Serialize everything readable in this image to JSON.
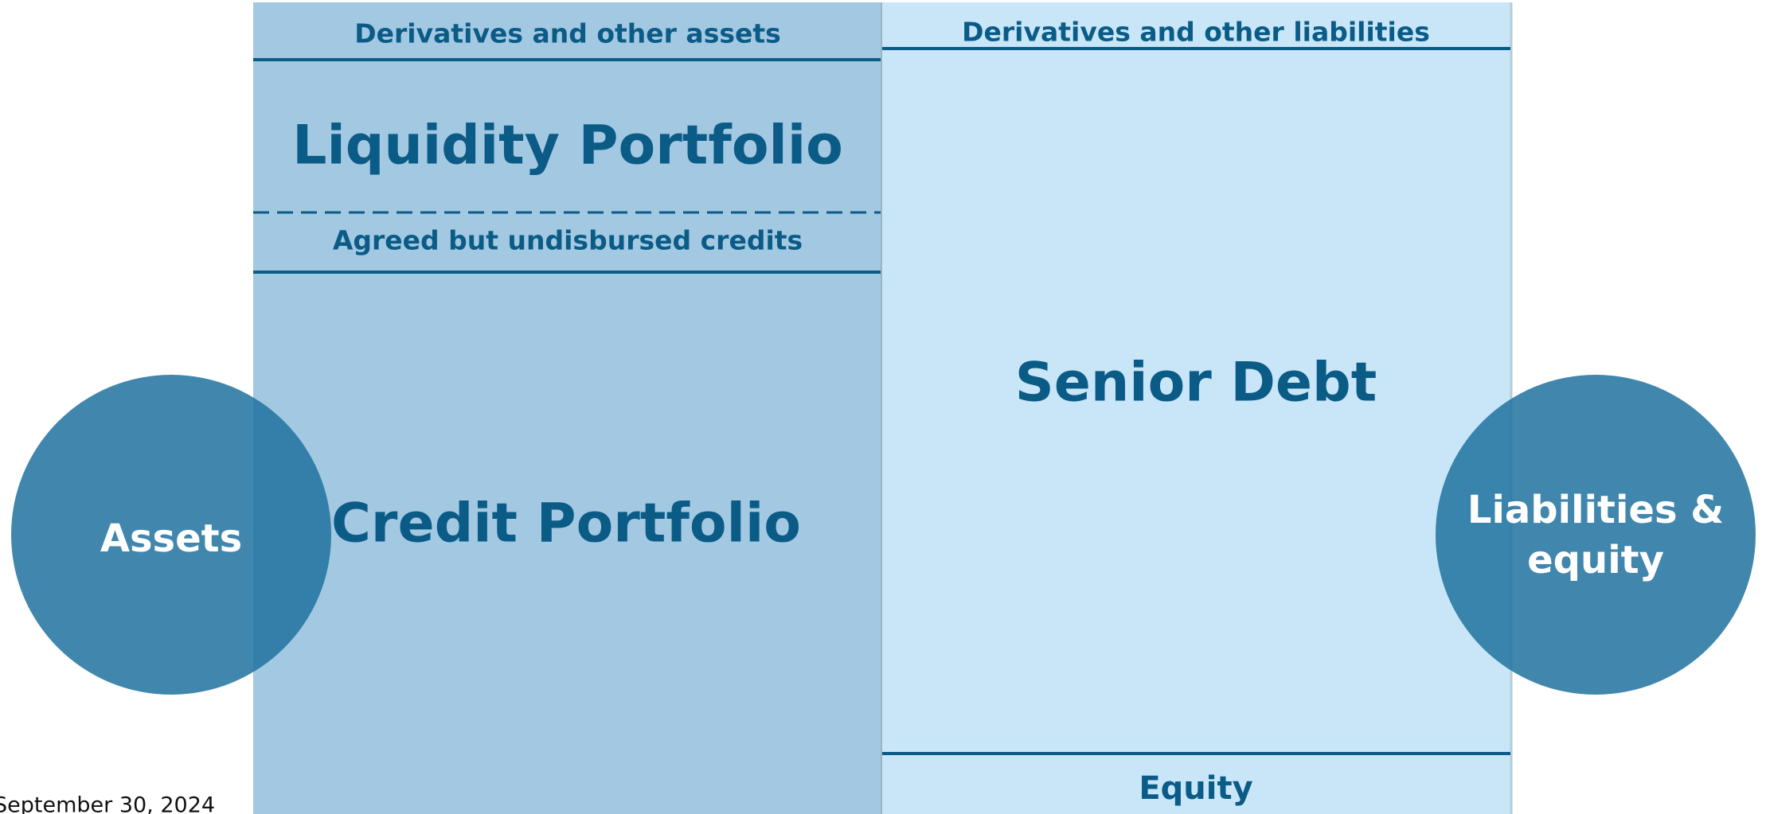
{
  "assets": {
    "top": "Derivatives and other assets",
    "liquidity": "Liquidity Portfolio",
    "undisbursed": "Agreed but undisbursed credits",
    "credit": "Credit Portfolio"
  },
  "liabilities": {
    "top": "Derivatives and other liabilities",
    "senior": "Senior Debt",
    "equity": "Equity"
  },
  "circles": {
    "left": "Assets",
    "right_line1": "Liabilities &",
    "right_line2": "equity"
  },
  "date": "September 30, 2024"
}
